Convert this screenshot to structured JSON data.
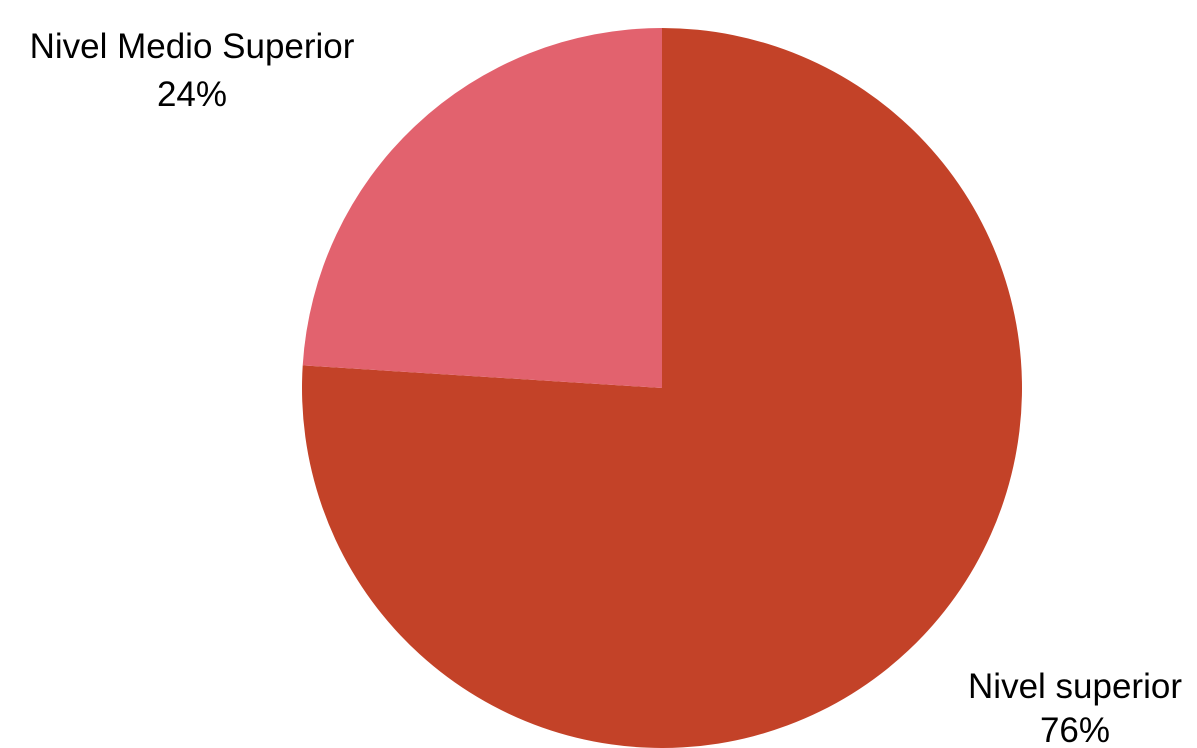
{
  "chart_data": {
    "type": "pie",
    "title": "",
    "slices": [
      {
        "label": "Nivel superior",
        "value": 76,
        "percent_label": "76%",
        "color": "#c34228"
      },
      {
        "label": "Nivel Medio Superior",
        "value": 24,
        "percent_label": "24%",
        "color": "#e2626e"
      }
    ],
    "start_angle_deg": 0,
    "direction": "clockwise",
    "legend": "none",
    "labels_position": "outside"
  }
}
